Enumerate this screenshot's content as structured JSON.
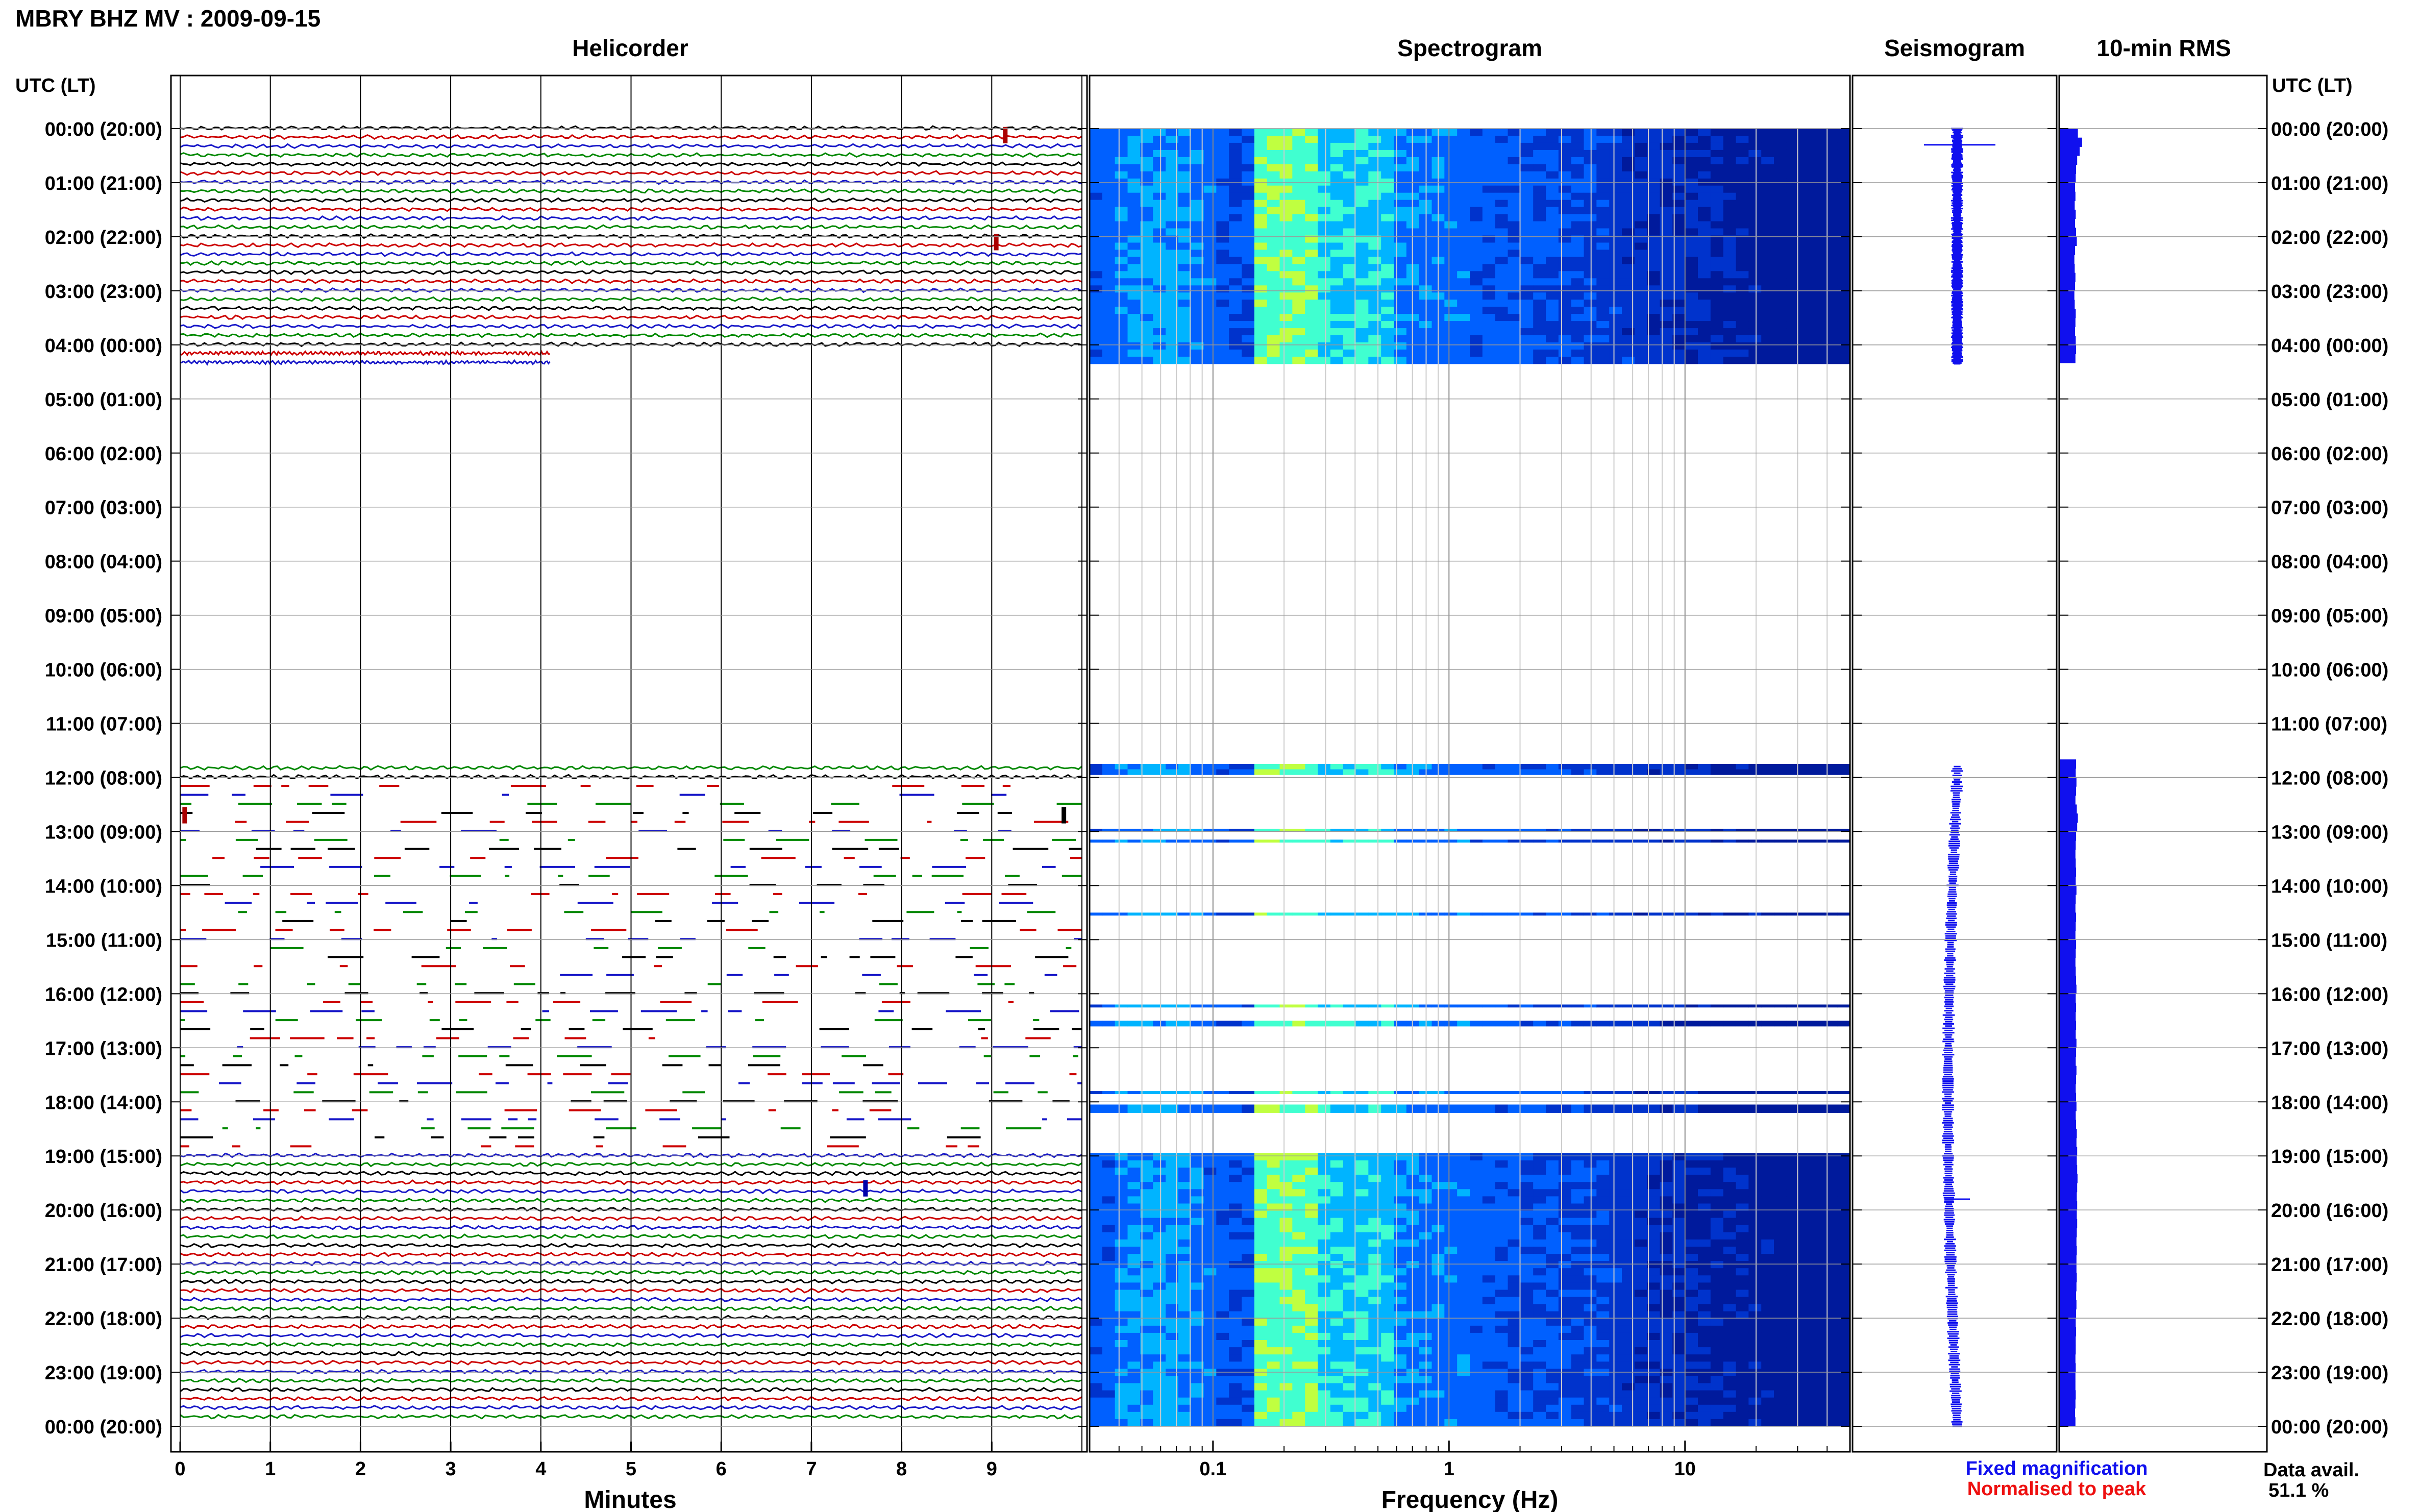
{
  "header": {
    "station_title": "MBRY BHZ MV : 2009-09-15"
  },
  "panels": {
    "helicorder_title": "Helicorder",
    "spectrogram_title": "Spectrogram",
    "seismogram_title": "Seismogram",
    "rms_title": "10-min RMS"
  },
  "axes": {
    "left_label": "UTC (LT)",
    "right_label": "UTC (LT)",
    "helicorder_xlabel": "Minutes",
    "spectrogram_xlabel": "Frequency (Hz)"
  },
  "legend": {
    "fixed": "Fixed magnification",
    "normalised": "Normalised to peak",
    "fixed_color": "#1010ee",
    "normalised_color": "#ee1010"
  },
  "data_avail": {
    "label": "Data avail.",
    "value": "51.1 %"
  },
  "chart_data": {
    "type": "heatmap",
    "time_labels": [
      "00:00 (20:00)",
      "01:00 (21:00)",
      "02:00 (22:00)",
      "03:00 (23:00)",
      "04:00 (00:00)",
      "05:00 (01:00)",
      "06:00 (02:00)",
      "07:00 (03:00)",
      "08:00 (04:00)",
      "09:00 (05:00)",
      "10:00 (06:00)",
      "11:00 (07:00)",
      "12:00 (08:00)",
      "13:00 (09:00)",
      "14:00 (10:00)",
      "15:00 (11:00)",
      "16:00 (12:00)",
      "17:00 (13:00)",
      "18:00 (14:00)",
      "19:00 (15:00)",
      "20:00 (16:00)",
      "21:00 (17:00)",
      "22:00 (18:00)",
      "23:00 (19:00)",
      "00:00 (20:00)"
    ],
    "helicorder": {
      "minute_ticks": [
        "0",
        "1",
        "2",
        "3",
        "4",
        "5",
        "6",
        "7",
        "8",
        "9"
      ],
      "xlim": [
        0,
        10
      ],
      "trace_colors": [
        "#000000",
        "#cc0000",
        "#1818c8",
        "#008800"
      ],
      "lines_per_hour": 6,
      "data_segments_hours": [
        [
          0,
          4.35
        ],
        [
          11.7,
          24
        ]
      ],
      "gappy_segment_hours": [
        12.05,
        18.9
      ]
    },
    "spectrogram": {
      "x_tick_labels": [
        "0.1",
        "1",
        "10"
      ],
      "x_ticks": [
        0.1,
        1,
        10
      ],
      "xlim": [
        0.03,
        50
      ],
      "log_scale": true,
      "colormap": [
        "#001a9c",
        "#0033cc",
        "#0060ff",
        "#00b4ff",
        "#40ffd0",
        "#c0ff40"
      ],
      "bands_hours": [
        [
          0,
          4.35
        ],
        [
          11.75,
          11.95
        ],
        [
          12.95,
          13.0
        ],
        [
          13.15,
          13.2
        ],
        [
          14.5,
          14.55
        ],
        [
          16.2,
          16.25
        ],
        [
          16.5,
          16.6
        ],
        [
          17.8,
          17.85
        ],
        [
          18.05,
          18.2
        ],
        [
          18.95,
          24
        ]
      ]
    },
    "seismogram": {
      "segments_hours": [
        [
          0,
          4.35
        ],
        [
          11.8,
          24
        ]
      ],
      "color": "#1010ee"
    },
    "rms": {
      "color": "#1010ee",
      "bins_10min": [
        {
          "h": 0.0,
          "v": 0.5
        },
        {
          "h": 0.167,
          "v": 0.62
        },
        {
          "h": 0.333,
          "v": 0.55
        },
        {
          "h": 0.5,
          "v": 0.48
        },
        {
          "h": 0.667,
          "v": 0.45
        },
        {
          "h": 0.833,
          "v": 0.44
        },
        {
          "h": 1.0,
          "v": 0.42
        },
        {
          "h": 1.167,
          "v": 0.43
        },
        {
          "h": 1.333,
          "v": 0.41
        },
        {
          "h": 1.5,
          "v": 0.44
        },
        {
          "h": 1.667,
          "v": 0.42
        },
        {
          "h": 1.833,
          "v": 0.45
        },
        {
          "h": 2.0,
          "v": 0.47
        },
        {
          "h": 2.167,
          "v": 0.42
        },
        {
          "h": 2.333,
          "v": 0.4
        },
        {
          "h": 2.5,
          "v": 0.41
        },
        {
          "h": 2.667,
          "v": 0.43
        },
        {
          "h": 2.833,
          "v": 0.42
        },
        {
          "h": 3.0,
          "v": 0.4
        },
        {
          "h": 3.167,
          "v": 0.41
        },
        {
          "h": 3.333,
          "v": 0.44
        },
        {
          "h": 3.5,
          "v": 0.43
        },
        {
          "h": 3.667,
          "v": 0.42
        },
        {
          "h": 3.833,
          "v": 0.44
        },
        {
          "h": 4.0,
          "v": 0.45
        },
        {
          "h": 4.167,
          "v": 0.43
        },
        {
          "h": 4.333,
          "v": 0.0
        },
        {
          "h": 11.667,
          "v": 0.45
        },
        {
          "h": 11.833,
          "v": 0.44
        },
        {
          "h": 12.0,
          "v": 0.46
        },
        {
          "h": 12.167,
          "v": 0.45
        },
        {
          "h": 12.333,
          "v": 0.43
        },
        {
          "h": 12.5,
          "v": 0.47
        },
        {
          "h": 12.667,
          "v": 0.5
        },
        {
          "h": 12.833,
          "v": 0.48
        },
        {
          "h": 13.0,
          "v": 0.45
        },
        {
          "h": 13.167,
          "v": 0.44
        },
        {
          "h": 13.333,
          "v": 0.43
        },
        {
          "h": 13.5,
          "v": 0.44
        },
        {
          "h": 13.667,
          "v": 0.45
        },
        {
          "h": 13.833,
          "v": 0.44
        },
        {
          "h": 14.0,
          "v": 0.46
        },
        {
          "h": 14.167,
          "v": 0.44
        },
        {
          "h": 14.333,
          "v": 0.43
        },
        {
          "h": 14.5,
          "v": 0.45
        },
        {
          "h": 14.667,
          "v": 0.44
        },
        {
          "h": 14.833,
          "v": 0.43
        },
        {
          "h": 15.0,
          "v": 0.45
        },
        {
          "h": 15.167,
          "v": 0.44
        },
        {
          "h": 15.333,
          "v": 0.43
        },
        {
          "h": 15.5,
          "v": 0.44
        },
        {
          "h": 15.667,
          "v": 0.45
        },
        {
          "h": 15.833,
          "v": 0.46
        },
        {
          "h": 16.0,
          "v": 0.44
        },
        {
          "h": 16.167,
          "v": 0.45
        },
        {
          "h": 16.333,
          "v": 0.44
        },
        {
          "h": 16.5,
          "v": 0.45
        },
        {
          "h": 16.667,
          "v": 0.44
        },
        {
          "h": 16.833,
          "v": 0.46
        },
        {
          "h": 17.0,
          "v": 0.45
        },
        {
          "h": 17.167,
          "v": 0.44
        },
        {
          "h": 17.333,
          "v": 0.46
        },
        {
          "h": 17.5,
          "v": 0.45
        },
        {
          "h": 17.667,
          "v": 0.44
        },
        {
          "h": 17.833,
          "v": 0.45
        },
        {
          "h": 18.0,
          "v": 0.46
        },
        {
          "h": 18.167,
          "v": 0.44
        },
        {
          "h": 18.333,
          "v": 0.45
        },
        {
          "h": 18.5,
          "v": 0.47
        },
        {
          "h": 18.667,
          "v": 0.46
        },
        {
          "h": 18.833,
          "v": 0.48
        },
        {
          "h": 19.0,
          "v": 0.47
        },
        {
          "h": 19.167,
          "v": 0.48
        },
        {
          "h": 19.333,
          "v": 0.49
        },
        {
          "h": 19.5,
          "v": 0.48
        },
        {
          "h": 19.667,
          "v": 0.47
        },
        {
          "h": 19.833,
          "v": 0.48
        },
        {
          "h": 20.0,
          "v": 0.47
        },
        {
          "h": 20.167,
          "v": 0.48
        },
        {
          "h": 20.333,
          "v": 0.47
        },
        {
          "h": 20.5,
          "v": 0.46
        },
        {
          "h": 20.667,
          "v": 0.47
        },
        {
          "h": 20.833,
          "v": 0.46
        },
        {
          "h": 21.0,
          "v": 0.46
        },
        {
          "h": 21.167,
          "v": 0.47
        },
        {
          "h": 21.333,
          "v": 0.46
        },
        {
          "h": 21.5,
          "v": 0.45
        },
        {
          "h": 21.667,
          "v": 0.46
        },
        {
          "h": 21.833,
          "v": 0.45
        },
        {
          "h": 22.0,
          "v": 0.44
        },
        {
          "h": 22.167,
          "v": 0.45
        },
        {
          "h": 22.333,
          "v": 0.44
        },
        {
          "h": 22.5,
          "v": 0.44
        },
        {
          "h": 22.667,
          "v": 0.43
        },
        {
          "h": 22.833,
          "v": 0.44
        },
        {
          "h": 23.0,
          "v": 0.43
        },
        {
          "h": 23.167,
          "v": 0.43
        },
        {
          "h": 23.333,
          "v": 0.44
        },
        {
          "h": 23.5,
          "v": 0.43
        },
        {
          "h": 23.667,
          "v": 0.42
        },
        {
          "h": 23.833,
          "v": 0.43
        }
      ]
    }
  }
}
